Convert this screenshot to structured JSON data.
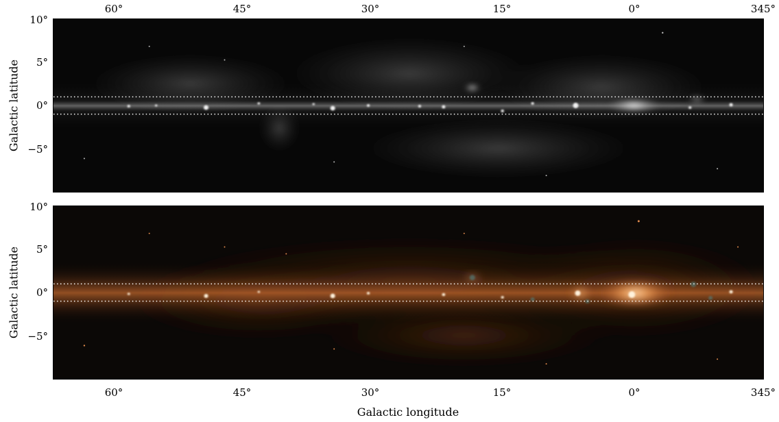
{
  "figure": {
    "xlabel": "Galactic longitude",
    "ylabel": "Galactic latitude",
    "x_ticks": [
      "60°",
      "45°",
      "30°",
      "15°",
      "0°",
      "345°"
    ],
    "y_ticks": [
      "10°",
      "5°",
      "0°",
      "−5°"
    ],
    "x_range_deg": [
      67,
      345
    ],
    "y_range_deg": [
      -10,
      10
    ],
    "dotted_band_deg": [
      -1,
      1
    ]
  },
  "panels": [
    {
      "name": "grayscale-map",
      "colors": {
        "bg": "#060606",
        "band": "#ffffff",
        "glow": "#d8d8d8"
      }
    },
    {
      "name": "color-composite-map",
      "colors": {
        "bg": "#0b0806",
        "band": "#ff9a55",
        "glow": "#ffe2b0",
        "teal": "#4f8a8a"
      }
    }
  ]
}
